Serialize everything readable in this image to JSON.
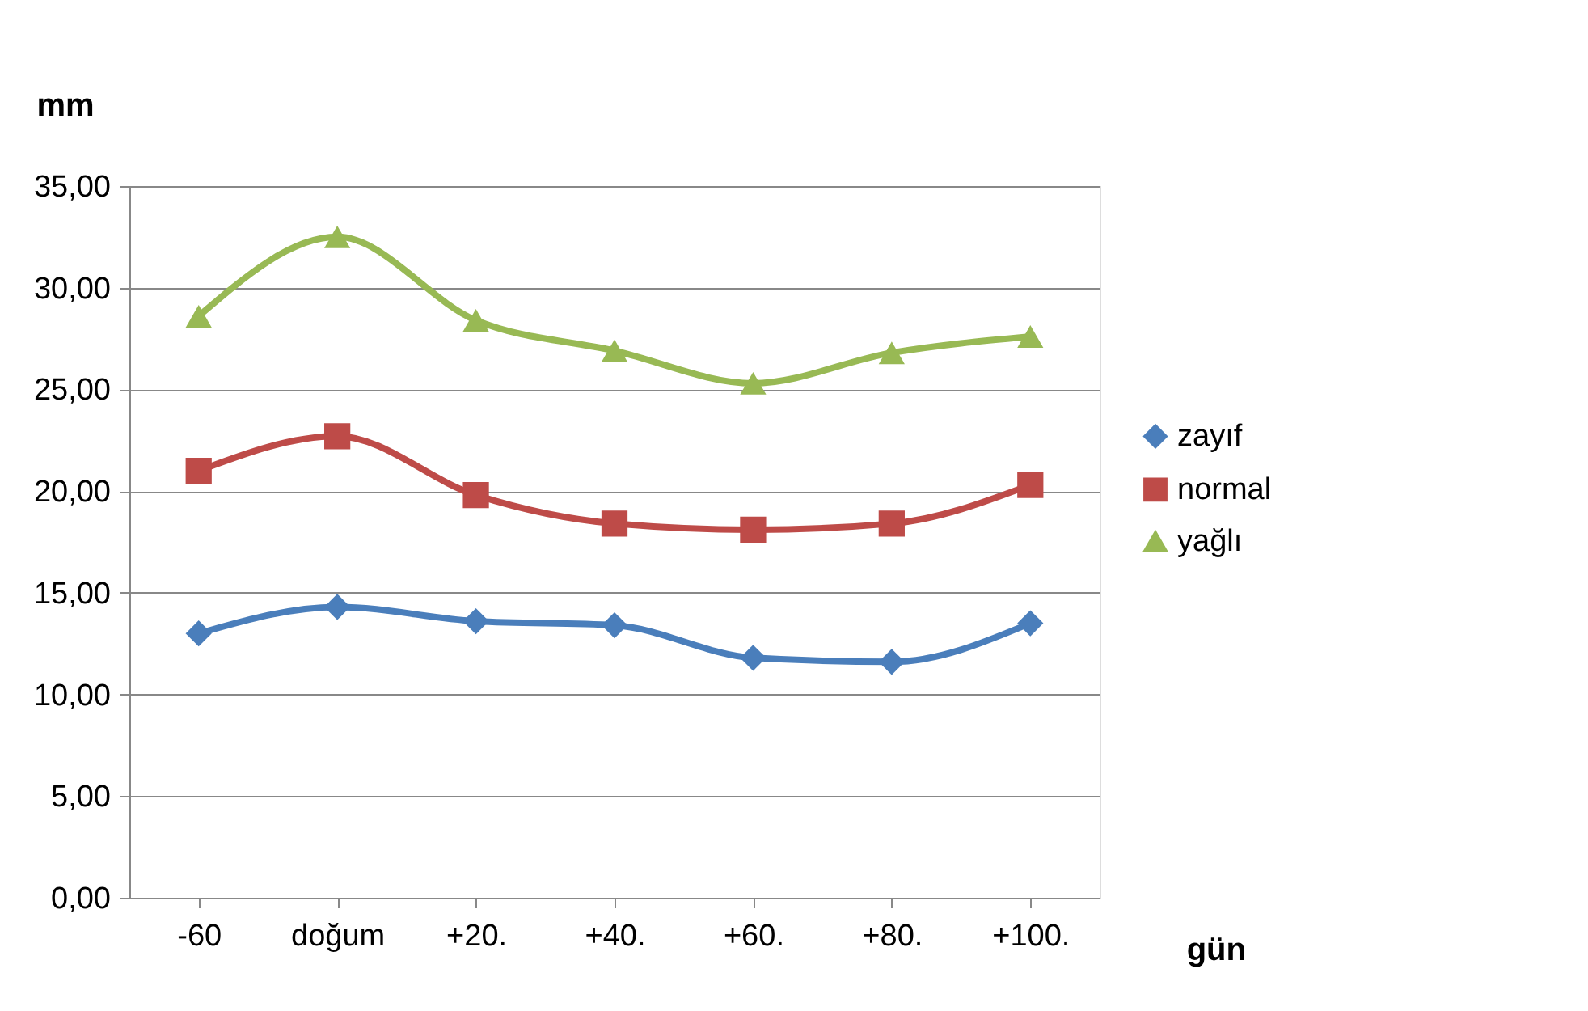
{
  "chart_data": {
    "type": "line",
    "ylabel": "mm",
    "xlabel": "gün",
    "categories": [
      "-60",
      "doğum",
      "+20.",
      "+40.",
      "+60.",
      "+80.",
      "+100."
    ],
    "series": [
      {
        "name": "zayıf",
        "color": "#4a7ebb",
        "marker": "diamond",
        "values": [
          13.0,
          14.3,
          13.6,
          13.4,
          11.8,
          11.6,
          13.5
        ]
      },
      {
        "name": "normal",
        "color": "#be4b48",
        "marker": "square",
        "values": [
          21.0,
          22.7,
          19.8,
          18.4,
          18.1,
          18.4,
          20.3
        ]
      },
      {
        "name": "yağlı",
        "color": "#98b954",
        "marker": "triangle",
        "values": [
          28.6,
          32.5,
          28.4,
          26.9,
          25.3,
          26.8,
          27.6
        ]
      }
    ],
    "ylim": [
      0,
      35
    ],
    "yticks": [
      {
        "value": 0,
        "label": "0,00"
      },
      {
        "value": 5,
        "label": "5,00"
      },
      {
        "value": 10,
        "label": "10,00"
      },
      {
        "value": 15,
        "label": "15,00"
      },
      {
        "value": 20,
        "label": "20,00"
      },
      {
        "value": 25,
        "label": "25,00"
      },
      {
        "value": 30,
        "label": "30,00"
      },
      {
        "value": 35,
        "label": "35,00"
      }
    ],
    "grid": "y",
    "legend": "right",
    "line_style": "solid"
  }
}
